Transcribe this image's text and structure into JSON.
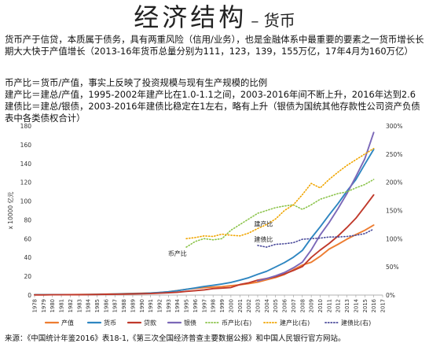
{
  "title_main": "经济结构",
  "title_sub": "– 货币",
  "paragraphs": {
    "p1": "货币产于信贷，本质属于债务，具有两重风险（信用/业务），也是金融体系中最重要的要素之一货币增长长期大大快于产值增长（2013-16年货币总量分别为111，123，139，155万亿，17年4月为160万亿）",
    "p2": "币产比＝货币/产值，事实上反映了投资规模与现有生产规模的比例",
    "p3": "建产比＝建总/产值，1995-2002年建产比在1.0-1.1之间，2003-2016年间不断上升，2016年达到2.6",
    "p4": "建债比＝建总/银债，2003-2016年建债比稳定在1左右，略有上升（银债为国统其他存款性公司资产负债表中各类债权合计）"
  },
  "source": "来源：《中国统计年鉴2016》表18-1,《第三次全国经济普查主要数据公报》和中国人民银行官方网站。",
  "chart_data": {
    "type": "line",
    "ylabel_left": "x 10000 亿元",
    "ylim_left": [
      0,
      180
    ],
    "yticks_left": [
      "0",
      "20",
      "40",
      "60",
      "80",
      "100",
      "120",
      "140",
      "160",
      "180"
    ],
    "ylim_right": [
      0,
      300
    ],
    "yticks_right": [
      "0%",
      "50%",
      "100%",
      "150%",
      "200%",
      "250%",
      "300%"
    ],
    "categories": [
      "1978",
      "1979",
      "1980",
      "1981",
      "1982",
      "1983",
      "1984",
      "1985",
      "1986",
      "1987",
      "1988",
      "1989",
      "1990",
      "1991",
      "1992",
      "1993",
      "1994",
      "1995",
      "1996",
      "1997",
      "1998",
      "1999",
      "2000",
      "2001",
      "2002",
      "2003",
      "2004",
      "2005",
      "2006",
      "2007",
      "2008",
      "2009",
      "2010",
      "2011",
      "2012",
      "2013",
      "2014",
      "2015",
      "2016",
      "2017"
    ],
    "series": [
      {
        "name": "产值",
        "axis": "left",
        "style": "solid",
        "color": "#ED7D31",
        "values": [
          0.4,
          0.4,
          0.5,
          0.5,
          0.5,
          0.6,
          0.7,
          0.9,
          1.0,
          1.2,
          1.5,
          1.7,
          1.9,
          2.2,
          2.7,
          3.5,
          4.8,
          6.1,
          7.2,
          7.9,
          8.5,
          9.0,
          10.0,
          11.0,
          12.2,
          13.7,
          16.2,
          18.7,
          21.9,
          27.0,
          31.9,
          34.9,
          41.3,
          48.9,
          54.0,
          59.5,
          64.4,
          68.9,
          74.4,
          null
        ]
      },
      {
        "name": "货币",
        "axis": "left",
        "style": "solid",
        "color": "#2E86C1",
        "values": [
          0.3,
          0.3,
          0.4,
          0.4,
          0.5,
          0.5,
          0.6,
          0.7,
          0.9,
          1.1,
          1.3,
          1.5,
          1.8,
          2.2,
          2.8,
          3.5,
          4.7,
          6.1,
          7.6,
          9.1,
          10.4,
          11.8,
          13.5,
          15.8,
          18.5,
          22.1,
          25.3,
          29.9,
          34.6,
          40.3,
          47.5,
          60.6,
          72.6,
          85.2,
          97.4,
          110.7,
          122.8,
          139.2,
          155.0,
          null
        ]
      },
      {
        "name": "贷款",
        "axis": "left",
        "style": "solid",
        "color": "#C0392B",
        "values": [
          0.2,
          0.2,
          0.3,
          0.3,
          0.4,
          0.4,
          0.5,
          0.6,
          0.8,
          0.9,
          1.0,
          1.2,
          1.4,
          1.6,
          2.0,
          2.4,
          3.0,
          3.9,
          4.7,
          5.5,
          6.9,
          7.4,
          8.0,
          11.2,
          13.1,
          15.9,
          17.7,
          19.5,
          22.5,
          26.2,
          30.3,
          40.0,
          47.9,
          54.8,
          62.9,
          71.9,
          81.7,
          94.0,
          106.6,
          null
        ]
      },
      {
        "name": "银债",
        "axis": "left",
        "style": "solid",
        "color": "#7B68B8",
        "values": [
          null,
          null,
          null,
          null,
          null,
          null,
          null,
          null,
          null,
          null,
          null,
          null,
          null,
          null,
          null,
          null,
          null,
          null,
          null,
          null,
          null,
          null,
          null,
          null,
          null,
          15.0,
          17.6,
          20.5,
          24.0,
          29.0,
          35.0,
          48.0,
          64.0,
          77.0,
          92.0,
          108.0,
          126.0,
          145.0,
          173.0,
          null
        ]
      },
      {
        "name": "币产比(右)",
        "axis": "right",
        "style": "dotted",
        "color": "#8BC34A",
        "values": [
          null,
          null,
          null,
          null,
          null,
          null,
          null,
          null,
          null,
          null,
          null,
          null,
          null,
          null,
          null,
          null,
          null,
          85,
          95,
          100,
          98,
          100,
          115,
          125,
          135,
          145,
          150,
          155,
          158,
          160,
          152,
          160,
          170,
          175,
          180,
          183,
          190,
          196,
          205,
          null
        ]
      },
      {
        "name": "建产比(右)",
        "axis": "right",
        "style": "dotted",
        "color": "#F0A500",
        "values": [
          null,
          null,
          null,
          null,
          null,
          null,
          null,
          null,
          null,
          null,
          null,
          null,
          null,
          null,
          null,
          null,
          null,
          100,
          102,
          105,
          104,
          108,
          106,
          105,
          110,
          118,
          125,
          135,
          150,
          160,
          178,
          198,
          190,
          205,
          218,
          230,
          240,
          250,
          260,
          null
        ]
      },
      {
        "name": "建债比(右)",
        "axis": "right",
        "style": "dotted",
        "color": "#4A4A9A",
        "values": [
          null,
          null,
          null,
          null,
          null,
          null,
          null,
          null,
          null,
          null,
          null,
          null,
          null,
          null,
          null,
          null,
          null,
          null,
          null,
          null,
          null,
          null,
          null,
          null,
          null,
          88,
          85,
          90,
          91,
          93,
          99,
          100,
          101,
          103,
          103,
          104,
          106,
          109,
          117,
          null
        ]
      }
    ],
    "annotations": [
      "币产比",
      "建产比",
      "建债比"
    ],
    "legend_position": "bottom",
    "grid": false
  }
}
